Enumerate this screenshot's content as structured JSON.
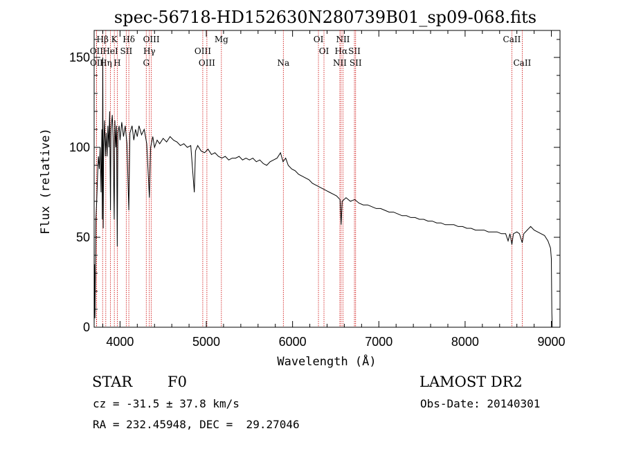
{
  "chart_data": {
    "type": "line",
    "title": "spec-56718-HD152630N280739B01_sp09-068.fits",
    "xlabel": "Wavelength (Å)",
    "ylabel": "Flux (relative)",
    "xlim": [
      3700,
      9100
    ],
    "ylim": [
      0,
      165
    ],
    "xticks": [
      4000,
      5000,
      6000,
      7000,
      8000,
      9000
    ],
    "yticks": [
      0,
      50,
      100,
      150
    ],
    "grid": false,
    "series": [
      {
        "name": "Flux",
        "points": [
          [
            3700,
            0
          ],
          [
            3705,
            35
          ],
          [
            3710,
            5
          ],
          [
            3720,
            60
          ],
          [
            3730,
            70
          ],
          [
            3740,
            85
          ],
          [
            3750,
            95
          ],
          [
            3760,
            88
          ],
          [
            3770,
            100
          ],
          [
            3780,
            75
          ],
          [
            3790,
            110
          ],
          [
            3795,
            60
          ],
          [
            3800,
            150
          ],
          [
            3805,
            55
          ],
          [
            3810,
            100
          ],
          [
            3820,
            115
          ],
          [
            3830,
            95
          ],
          [
            3840,
            108
          ],
          [
            3850,
            95
          ],
          [
            3860,
            112
          ],
          [
            3870,
            100
          ],
          [
            3880,
            120
          ],
          [
            3889,
            65
          ],
          [
            3895,
            110
          ],
          [
            3910,
            118
          ],
          [
            3920,
            105
          ],
          [
            3933,
            60
          ],
          [
            3940,
            115
          ],
          [
            3950,
            100
          ],
          [
            3960,
            112
          ],
          [
            3968,
            45
          ],
          [
            3975,
            108
          ],
          [
            3990,
            112
          ],
          [
            4000,
            104
          ],
          [
            4020,
            114
          ],
          [
            4040,
            106
          ],
          [
            4060,
            112
          ],
          [
            4080,
            102
          ],
          [
            4102,
            65
          ],
          [
            4115,
            108
          ],
          [
            4140,
            112
          ],
          [
            4160,
            104
          ],
          [
            4180,
            110
          ],
          [
            4200,
            106
          ],
          [
            4220,
            112
          ],
          [
            4250,
            107
          ],
          [
            4280,
            110
          ],
          [
            4310,
            102
          ],
          [
            4340,
            72
          ],
          [
            4355,
            100
          ],
          [
            4380,
            106
          ],
          [
            4400,
            100
          ],
          [
            4430,
            104
          ],
          [
            4460,
            102
          ],
          [
            4500,
            105
          ],
          [
            4540,
            103
          ],
          [
            4580,
            106
          ],
          [
            4620,
            104
          ],
          [
            4660,
            103
          ],
          [
            4700,
            101
          ],
          [
            4740,
            102
          ],
          [
            4780,
            100
          ],
          [
            4820,
            101
          ],
          [
            4861,
            75
          ],
          [
            4875,
            98
          ],
          [
            4900,
            101
          ],
          [
            4940,
            98
          ],
          [
            4980,
            97
          ],
          [
            5020,
            99
          ],
          [
            5060,
            96
          ],
          [
            5100,
            97
          ],
          [
            5140,
            95
          ],
          [
            5180,
            94
          ],
          [
            5220,
            95
          ],
          [
            5260,
            93
          ],
          [
            5300,
            94
          ],
          [
            5340,
            94
          ],
          [
            5380,
            95
          ],
          [
            5420,
            93
          ],
          [
            5460,
            94
          ],
          [
            5500,
            93
          ],
          [
            5540,
            94
          ],
          [
            5580,
            92
          ],
          [
            5620,
            93
          ],
          [
            5660,
            91
          ],
          [
            5700,
            90
          ],
          [
            5740,
            92
          ],
          [
            5780,
            93
          ],
          [
            5820,
            94
          ],
          [
            5860,
            97
          ],
          [
            5890,
            92
          ],
          [
            5920,
            94
          ],
          [
            5950,
            90
          ],
          [
            5990,
            88
          ],
          [
            6030,
            87
          ],
          [
            6070,
            85
          ],
          [
            6110,
            84
          ],
          [
            6150,
            83
          ],
          [
            6190,
            82
          ],
          [
            6230,
            80
          ],
          [
            6270,
            79
          ],
          [
            6310,
            78
          ],
          [
            6350,
            77
          ],
          [
            6390,
            76
          ],
          [
            6430,
            75
          ],
          [
            6470,
            74
          ],
          [
            6510,
            73
          ],
          [
            6550,
            71
          ],
          [
            6563,
            57
          ],
          [
            6575,
            70
          ],
          [
            6620,
            72
          ],
          [
            6670,
            70
          ],
          [
            6720,
            71
          ],
          [
            6770,
            69
          ],
          [
            6820,
            68
          ],
          [
            6870,
            68
          ],
          [
            6920,
            67
          ],
          [
            6970,
            66
          ],
          [
            7020,
            66
          ],
          [
            7070,
            65
          ],
          [
            7120,
            64
          ],
          [
            7170,
            64
          ],
          [
            7220,
            63
          ],
          [
            7270,
            62
          ],
          [
            7320,
            62
          ],
          [
            7370,
            61
          ],
          [
            7420,
            61
          ],
          [
            7470,
            60
          ],
          [
            7520,
            60
          ],
          [
            7570,
            59
          ],
          [
            7620,
            59
          ],
          [
            7670,
            58
          ],
          [
            7720,
            58
          ],
          [
            7770,
            57
          ],
          [
            7820,
            57
          ],
          [
            7870,
            57
          ],
          [
            7920,
            56
          ],
          [
            7970,
            56
          ],
          [
            8020,
            55
          ],
          [
            8070,
            55
          ],
          [
            8120,
            54
          ],
          [
            8170,
            54
          ],
          [
            8220,
            54
          ],
          [
            8270,
            53
          ],
          [
            8320,
            53
          ],
          [
            8370,
            53
          ],
          [
            8420,
            52
          ],
          [
            8470,
            52
          ],
          [
            8498,
            48
          ],
          [
            8520,
            52
          ],
          [
            8542,
            46
          ],
          [
            8560,
            52
          ],
          [
            8600,
            53
          ],
          [
            8630,
            52
          ],
          [
            8662,
            47
          ],
          [
            8680,
            52
          ],
          [
            8720,
            54
          ],
          [
            8760,
            56
          ],
          [
            8800,
            54
          ],
          [
            8840,
            53
          ],
          [
            8880,
            52
          ],
          [
            8920,
            51
          ],
          [
            8960,
            48
          ],
          [
            8990,
            44
          ],
          [
            9000,
            38
          ],
          [
            9005,
            8
          ],
          [
            9010,
            0
          ]
        ]
      }
    ],
    "lines": [
      {
        "label": "Hβ",
        "wl": 3798,
        "row": 0
      },
      {
        "label": "K",
        "wl": 3934,
        "row": 0
      },
      {
        "label": "Hδ",
        "wl": 4102,
        "row": 0
      },
      {
        "label": "OIII",
        "wl": 4363,
        "row": 0
      },
      {
        "label": "Mg",
        "wl": 5175,
        "row": 0
      },
      {
        "label": "OI",
        "wl": 6300,
        "row": 0
      },
      {
        "label": "NII",
        "wl": 6584,
        "row": 0
      },
      {
        "label": "CaII",
        "wl": 8542,
        "row": 0
      },
      {
        "label": "OII",
        "wl": 3727,
        "row": 1
      },
      {
        "label": "HeI",
        "wl": 3889,
        "row": 1
      },
      {
        "label": "SII",
        "wl": 4072,
        "row": 1
      },
      {
        "label": "Hγ",
        "wl": 4340,
        "row": 1
      },
      {
        "label": "OIII",
        "wl": 4959,
        "row": 1
      },
      {
        "label": "OI",
        "wl": 6364,
        "row": 1
      },
      {
        "label": "Hα",
        "wl": 6563,
        "row": 1
      },
      {
        "label": "SII",
        "wl": 6717,
        "row": 1
      },
      {
        "label": "OII",
        "wl": 3729,
        "row": 2
      },
      {
        "label": "Hη",
        "wl": 3835,
        "row": 2
      },
      {
        "label": "H",
        "wl": 3968,
        "row": 2
      },
      {
        "label": "G",
        "wl": 4304,
        "row": 2
      },
      {
        "label": "OIII",
        "wl": 5007,
        "row": 2
      },
      {
        "label": "Na",
        "wl": 5893,
        "row": 2
      },
      {
        "label": "NII",
        "wl": 6548,
        "row": 2
      },
      {
        "label": "SII",
        "wl": 6731,
        "row": 2
      },
      {
        "label": "CaII",
        "wl": 8662,
        "row": 2
      }
    ],
    "line_color": "#cc0000"
  },
  "info": {
    "object_type": "STAR",
    "subclass": "F0",
    "survey": "LAMOST DR2",
    "redshift": "cz = -31.5 ± 37.8 km/s",
    "obs_date": "Obs-Date: 20140301",
    "coords": "RA = 232.45948, DEC =  29.27046"
  }
}
